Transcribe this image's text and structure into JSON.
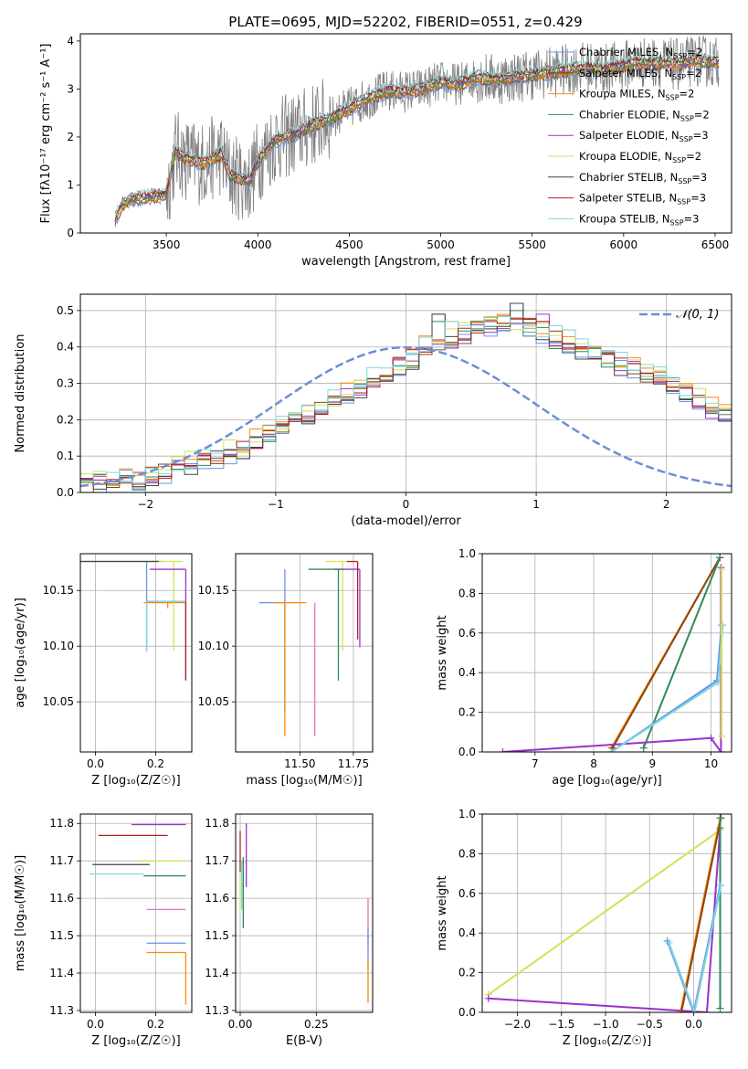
{
  "figure_title": "PLATE=0695, MJD=52202, FIBERID=0551, z=0.429",
  "chart_data": [
    {
      "id": "spectrum",
      "type": "line",
      "xlabel": "wavelength [Angstrom, rest frame]",
      "ylabel": "Flux [fλ10⁻¹⁷ erg cm⁻² s⁻¹ A⁻¹]",
      "xlim": [
        3030,
        6590
      ],
      "ylim": [
        0,
        4.15
      ],
      "xticks": [
        3500,
        4000,
        4500,
        5000,
        5500,
        6000,
        6500
      ],
      "yticks": [
        0,
        1,
        2,
        3,
        4
      ],
      "legend": [
        {
          "name": "Chabrier MILES, N_SSP=2",
          "color": "#6495ed"
        },
        {
          "name": "Salpeter MILES, N_SSP=2",
          "color": "#8b4513"
        },
        {
          "name": "Kroupa MILES, N_SSP=2",
          "color": "#ff8c00"
        },
        {
          "name": "Chabrier ELODIE, N_SSP=2",
          "color": "#2e8b57"
        },
        {
          "name": "Salpeter ELODIE, N_SSP=3",
          "color": "#9932cc"
        },
        {
          "name": "Kroupa ELODIE, N_SSP=2",
          "color": "#d4e157"
        },
        {
          "name": "Chabrier STELIB, N_SSP=3",
          "color": "#444444"
        },
        {
          "name": "Salpeter STELIB, N_SSP=3",
          "color": "#b22222"
        },
        {
          "name": "Kroupa STELIB, N_SSP=3",
          "color": "#7fd6dc"
        }
      ],
      "data_color": "#808080",
      "model_curve": {
        "x": [
          3220,
          3260,
          3300,
          3350,
          3400,
          3500,
          3550,
          3600,
          3700,
          3800,
          3850,
          3900,
          3950,
          4000,
          4100,
          4200,
          4300,
          4400,
          4500,
          4600,
          4700,
          4800,
          4900,
          5000,
          5100,
          5200,
          5300,
          5400,
          5500,
          5600,
          5700,
          5800,
          5900,
          6000,
          6100,
          6200,
          6300,
          6400,
          6500
        ],
        "y": [
          0.3,
          0.6,
          0.7,
          0.72,
          0.75,
          0.8,
          1.7,
          1.55,
          1.45,
          1.65,
          1.2,
          1.15,
          1.05,
          1.5,
          1.95,
          2.05,
          2.25,
          2.4,
          2.6,
          2.8,
          2.95,
          2.95,
          3.0,
          3.15,
          3.1,
          3.25,
          3.2,
          3.25,
          3.3,
          3.35,
          3.4,
          3.45,
          3.4,
          3.5,
          3.55,
          3.55,
          3.5,
          3.6,
          3.55
        ]
      }
    },
    {
      "id": "residuals",
      "type": "histogram",
      "xlabel": "(data-model)/error",
      "ylabel": "Normed distribution",
      "xlim": [
        -2.5,
        2.5
      ],
      "ylim": [
        0,
        0.545
      ],
      "xticks": [
        -2,
        -1,
        0,
        1,
        2
      ],
      "yticks": [
        0.0,
        0.1,
        0.2,
        0.3,
        0.4,
        0.5
      ],
      "gaussian_label": "𝒩(0, 1)",
      "gaussian_color": "#6a8fd8",
      "bin_edges_start": -2.5,
      "bin_width": 0.1,
      "base_values": [
        0.02,
        0.03,
        0.03,
        0.04,
        0.04,
        0.05,
        0.06,
        0.07,
        0.08,
        0.09,
        0.1,
        0.11,
        0.12,
        0.14,
        0.16,
        0.18,
        0.2,
        0.21,
        0.23,
        0.25,
        0.27,
        0.29,
        0.31,
        0.33,
        0.35,
        0.37,
        0.39,
        0.4,
        0.4,
        0.41,
        0.41,
        0.42,
        0.42,
        0.41,
        0.4,
        0.38,
        0.36,
        0.34,
        0.32,
        0.3,
        0.28,
        0.26,
        0.24,
        0.22,
        0.2,
        0.18,
        0.15,
        0.12,
        0.09,
        0.07
      ],
      "spikes": [
        {
          "bin": 27,
          "value": 0.49
        },
        {
          "bin": 28,
          "value": 0.47
        },
        {
          "bin": 30,
          "value": 0.47
        },
        {
          "bin": 33,
          "value": 0.52
        },
        {
          "bin": 35,
          "value": 0.49
        }
      ]
    },
    {
      "id": "age_vs_Z",
      "type": "scatter",
      "xlabel": "Z [log₁₀(Z/Z☉)]",
      "ylabel": "age  [log₁₀(age/yr)]",
      "xlim": [
        -0.05,
        0.32
      ],
      "ylim": [
        10.005,
        10.183
      ],
      "xticks": [
        0.0,
        0.2
      ],
      "yticks": [
        10.05,
        10.1,
        10.15
      ],
      "points": [
        {
          "x": 0.17,
          "y": 10.176,
          "xerr": [
            0.22,
            0.06
          ],
          "yerr": [
            0.08,
            0.0
          ],
          "color": "#6495ed"
        },
        {
          "x": 0.24,
          "y": 10.139,
          "xerr": [
            0.08,
            0.06
          ],
          "yerr": [
            0.005,
            0.0
          ],
          "color": "#ff8c00"
        },
        {
          "x": 0.26,
          "y": 10.176,
          "xerr": [
            0.1,
            0.03
          ],
          "yerr": [
            0.08,
            0.0
          ],
          "color": "#d4e157"
        },
        {
          "x": 0.3,
          "y": 10.169,
          "xerr": [
            0.12,
            0.0
          ],
          "yerr": [
            0.1,
            0.0
          ],
          "color": "#9932cc"
        },
        {
          "x": 0.3,
          "y": 10.14,
          "xerr": [
            0.13,
            0.0
          ],
          "yerr": [
            0.07,
            0.0
          ],
          "color": "#b22222"
        },
        {
          "x": 0.21,
          "y": 10.176,
          "xerr": [
            0.27,
            0.0
          ],
          "yerr": [
            0.0,
            0.0
          ],
          "color": "#444444"
        },
        {
          "x": 0.17,
          "y": 10.14,
          "xerr": [
            0.0,
            0.13
          ],
          "yerr": [
            0.045,
            0.0
          ],
          "color": "#7fd6dc"
        }
      ]
    },
    {
      "id": "age_vs_mass",
      "type": "scatter",
      "xlabel": "mass [log₁₀(M/M☉)]",
      "ylabel": "",
      "xlim": [
        11.2,
        11.84
      ],
      "ylim": [
        10.005,
        10.183
      ],
      "xticks": [
        11.5,
        11.75
      ],
      "yticks": [
        10.05,
        10.1,
        10.15
      ],
      "points": [
        {
          "x": 11.43,
          "y": 10.139,
          "xerr": [
            0.12,
            0.03
          ],
          "yerr": [
            0.1,
            0.03
          ],
          "color": "#6495ed"
        },
        {
          "x": 11.43,
          "y": 10.139,
          "xerr": [
            0.05,
            0.1
          ],
          "yerr": [
            0.12,
            0.0
          ],
          "color": "#ff8c00"
        },
        {
          "x": 11.57,
          "y": 10.139,
          "xerr": [
            0.0,
            0.0
          ],
          "yerr": [
            0.12,
            0.0
          ],
          "color": "#e377c2"
        },
        {
          "x": 11.7,
          "y": 10.176,
          "xerr": [
            0.08,
            0.04
          ],
          "yerr": [
            0.08,
            0.0
          ],
          "color": "#d4e157"
        },
        {
          "x": 11.78,
          "y": 10.169,
          "xerr": [
            0.12,
            0.0
          ],
          "yerr": [
            0.07,
            0.0
          ],
          "color": "#9932cc"
        },
        {
          "x": 11.68,
          "y": 10.169,
          "xerr": [
            0.14,
            0.02
          ],
          "yerr": [
            0.1,
            0.0
          ],
          "color": "#2e8b57"
        },
        {
          "x": 11.77,
          "y": 10.176,
          "xerr": [
            0.05,
            0.0
          ],
          "yerr": [
            0.07,
            0.0
          ],
          "color": "#b22222"
        }
      ]
    },
    {
      "id": "weight_vs_age",
      "type": "line",
      "xlabel": "age  [log₁₀(age/yr)]",
      "ylabel": "mass weight",
      "xlim": [
        6.1,
        10.35
      ],
      "ylim": [
        0.0,
        1.0
      ],
      "xticks": [
        7,
        8,
        9,
        10
      ],
      "yticks": [
        0.0,
        0.2,
        0.4,
        0.6,
        0.8,
        1.0
      ],
      "series": [
        {
          "color": "#ff8c00",
          "x": [
            8.3,
            10.15
          ],
          "y": [
            0.02,
            0.98
          ]
        },
        {
          "color": "#8b4513",
          "x": [
            8.32,
            10.15
          ],
          "y": [
            0.02,
            0.98
          ]
        },
        {
          "color": "#2e8b57",
          "x": [
            8.85,
            10.15
          ],
          "y": [
            0.02,
            0.98
          ]
        },
        {
          "color": "#9932cc",
          "x": [
            6.45,
            10.0,
            10.17,
            10.17
          ],
          "y": [
            0.0,
            0.07,
            0.0,
            0.93
          ]
        },
        {
          "color": "#6495ed",
          "x": [
            8.3,
            10.1,
            10.18
          ],
          "y": [
            0.0,
            0.36,
            0.64
          ]
        },
        {
          "color": "#7fd6dc",
          "x": [
            8.3,
            10.12,
            10.2
          ],
          "y": [
            0.0,
            0.35,
            0.64
          ]
        },
        {
          "color": "#d4e157",
          "x": [
            10.18,
            10.18
          ],
          "y": [
            0.08,
            0.92
          ]
        }
      ]
    },
    {
      "id": "mass_vs_Z",
      "type": "scatter",
      "xlabel": "Z [log₁₀(Z/Z☉)]",
      "ylabel": "mass [log₁₀(M/M☉)]",
      "xlim": [
        -0.05,
        0.32
      ],
      "ylim": [
        11.295,
        11.825
      ],
      "xticks": [
        0.0,
        0.2
      ],
      "yticks": [
        11.3,
        11.4,
        11.5,
        11.6,
        11.7,
        11.8
      ],
      "points": [
        {
          "x": 0.22,
          "y": 11.797,
          "xerr": [
            0.1,
            0.08
          ],
          "yerr": [
            0.0,
            0.0
          ],
          "color": "#9932cc"
        },
        {
          "x": 0.16,
          "y": 11.768,
          "xerr": [
            0.15,
            0.08
          ],
          "yerr": [
            0.0,
            0.0
          ],
          "color": "#b22222"
        },
        {
          "x": 0.22,
          "y": 11.7,
          "xerr": [
            0.08,
            0.08
          ],
          "yerr": [
            0.0,
            0.0
          ],
          "color": "#d4e157"
        },
        {
          "x": 0.18,
          "y": 11.69,
          "xerr": [
            0.19,
            0.0
          ],
          "yerr": [
            0.0,
            0.0
          ],
          "color": "#444444"
        },
        {
          "x": 0.16,
          "y": 11.665,
          "xerr": [
            0.18,
            0.0
          ],
          "yerr": [
            0.0,
            0.0
          ],
          "color": "#7fd6dc"
        },
        {
          "x": 0.3,
          "y": 11.66,
          "xerr": [
            0.14,
            0.0
          ],
          "yerr": [
            0.0,
            0.0
          ],
          "color": "#2e8b57"
        },
        {
          "x": 0.17,
          "y": 11.57,
          "xerr": [
            0.0,
            0.13
          ],
          "yerr": [
            0.0,
            0.0
          ],
          "color": "#e377c2"
        },
        {
          "x": 0.3,
          "y": 11.48,
          "xerr": [
            0.13,
            0.0
          ],
          "yerr": [
            0.0,
            0.0
          ],
          "color": "#6495ed"
        },
        {
          "x": 0.3,
          "y": 11.455,
          "xerr": [
            0.13,
            0.0
          ],
          "yerr": [
            0.14,
            0.0
          ],
          "color": "#ff8c00"
        }
      ]
    },
    {
      "id": "mass_vs_EBV",
      "type": "scatter",
      "xlabel": "E(B-V)",
      "ylabel": "",
      "xlim": [
        -0.015,
        0.435
      ],
      "ylim": [
        11.295,
        11.825
      ],
      "xticks": [
        0.0,
        0.25
      ],
      "yticks": [
        11.3,
        11.4,
        11.5,
        11.6,
        11.7,
        11.8
      ],
      "points": [
        {
          "x": 0.02,
          "y": 11.72,
          "xerr": [
            0.0,
            0.0
          ],
          "yerr": [
            0.09,
            0.08
          ],
          "color": "#9932cc"
        },
        {
          "x": 0.0,
          "y": 11.73,
          "xerr": [
            0.0,
            0.0
          ],
          "yerr": [
            0.06,
            0.05
          ],
          "color": "#b22222"
        },
        {
          "x": 0.01,
          "y": 11.6,
          "xerr": [
            0.0,
            0.0
          ],
          "yerr": [
            0.08,
            0.11
          ],
          "color": "#2e8b57"
        },
        {
          "x": 0.005,
          "y": 11.62,
          "xerr": [
            0.0,
            0.0
          ],
          "yerr": [
            0.05,
            0.08
          ],
          "color": "#7fd6dc"
        },
        {
          "x": 0.0,
          "y": 11.6,
          "xerr": [
            0.0,
            0.0
          ],
          "yerr": [
            0.04,
            0.06
          ],
          "color": "#d4e157"
        },
        {
          "x": 0.42,
          "y": 11.55,
          "xerr": [
            0.0,
            0.0
          ],
          "yerr": [
            0.08,
            0.05
          ],
          "color": "#e377c2"
        },
        {
          "x": 0.42,
          "y": 11.47,
          "xerr": [
            0.0,
            0.0
          ],
          "yerr": [
            0.06,
            0.05
          ],
          "color": "#6495ed"
        },
        {
          "x": 0.42,
          "y": 11.44,
          "xerr": [
            0.0,
            0.0
          ],
          "yerr": [
            0.12,
            0.0
          ],
          "color": "#ff8c00"
        }
      ]
    },
    {
      "id": "weight_vs_Z",
      "type": "line",
      "xlabel": "Z [log₁₀(Z/Z☉)]",
      "ylabel": "mass weight",
      "xlim": [
        -2.4,
        0.43
      ],
      "ylim": [
        0.0,
        1.0
      ],
      "xticks": [
        -2.0,
        -1.5,
        -1.0,
        -0.5,
        0.0
      ],
      "yticks": [
        0.0,
        0.2,
        0.4,
        0.6,
        0.8,
        1.0
      ],
      "series": [
        {
          "color": "#d4e157",
          "x": [
            -2.33,
            0.3
          ],
          "y": [
            0.09,
            0.92
          ]
        },
        {
          "color": "#9932cc",
          "x": [
            -2.33,
            0.15,
            0.3
          ],
          "y": [
            0.07,
            0.0,
            0.93
          ]
        },
        {
          "color": "#ff8c00",
          "x": [
            -0.15,
            0.3
          ],
          "y": [
            0.0,
            0.98
          ]
        },
        {
          "color": "#8b4513",
          "x": [
            -0.14,
            0.31
          ],
          "y": [
            0.0,
            0.98
          ]
        },
        {
          "color": "#2e8b57",
          "x": [
            0.3,
            0.3
          ],
          "y": [
            0.02,
            0.98
          ]
        },
        {
          "color": "#6495ed",
          "x": [
            -0.3,
            0.0,
            0.3
          ],
          "y": [
            0.36,
            0.0,
            0.64
          ]
        },
        {
          "color": "#7fd6dc",
          "x": [
            -0.28,
            0.01,
            0.31
          ],
          "y": [
            0.35,
            0.0,
            0.64
          ]
        }
      ]
    }
  ]
}
